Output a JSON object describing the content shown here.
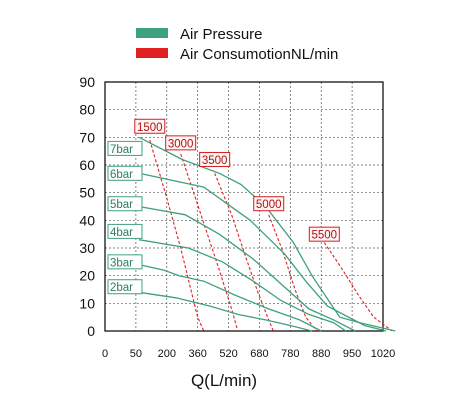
{
  "chart_data": {
    "type": "line",
    "xlabel": "Q(L/min)",
    "ylabel": "",
    "x_ticks": [
      "0",
      "50",
      "200",
      "360",
      "520",
      "680",
      "780",
      "880",
      "950",
      "1020"
    ],
    "y_ticks": [
      "0",
      "10",
      "20",
      "30",
      "40",
      "50",
      "60",
      "70",
      "80",
      "90"
    ],
    "ylim": [
      0,
      90
    ],
    "grid": true,
    "legend_position": "top",
    "legend": [
      {
        "label": "Air Pressure",
        "color": "#3fa07e"
      },
      {
        "label": "Air ConsumotionNL/min",
        "color": "#e02020"
      }
    ],
    "pressure_series": [
      {
        "name": "7bar",
        "color": "#3fa07e",
        "points": [
          [
            1.1,
            70
          ],
          [
            2.5,
            62
          ],
          [
            3.7,
            57
          ],
          [
            4.4,
            53
          ],
          [
            5.2,
            45
          ],
          [
            6.1,
            32
          ],
          [
            6.7,
            20
          ],
          [
            7.6,
            5
          ],
          [
            8.25,
            3
          ],
          [
            9.4,
            0
          ]
        ]
      },
      {
        "name": "6bar",
        "color": "#3fa07e",
        "points": [
          [
            1.1,
            57
          ],
          [
            3.2,
            52
          ],
          [
            4.7,
            40
          ],
          [
            5.8,
            28
          ],
          [
            6.5,
            18
          ],
          [
            7.2,
            9
          ],
          [
            8.4,
            2
          ],
          [
            9.1,
            0
          ]
        ]
      },
      {
        "name": "5bar",
        "color": "#3fa07e",
        "points": [
          [
            1.1,
            45
          ],
          [
            2.6,
            42
          ],
          [
            3.7,
            35
          ],
          [
            4.8,
            26
          ],
          [
            5.7,
            17
          ],
          [
            6.6,
            8
          ],
          [
            7.4,
            4
          ],
          [
            8.1,
            0
          ]
        ]
      },
      {
        "name": "4bar",
        "color": "#3fa07e",
        "points": [
          [
            1.1,
            33
          ],
          [
            2.7,
            30
          ],
          [
            3.8,
            25
          ],
          [
            4.8,
            18
          ],
          [
            5.7,
            11
          ],
          [
            6.6,
            6
          ],
          [
            7.4,
            3
          ],
          [
            7.8,
            0
          ]
        ]
      },
      {
        "name": "3bar",
        "color": "#3fa07e",
        "points": [
          [
            1.1,
            24
          ],
          [
            1.9,
            22
          ],
          [
            2.4,
            20
          ],
          [
            3.2,
            18
          ],
          [
            4.2,
            13
          ],
          [
            5.3,
            8
          ],
          [
            6.3,
            4
          ],
          [
            7.0,
            0
          ]
        ]
      },
      {
        "name": "2bar",
        "color": "#3fa07e",
        "points": [
          [
            1.1,
            14
          ],
          [
            2.3,
            12
          ],
          [
            3.4,
            9
          ],
          [
            4.3,
            6
          ],
          [
            5.2,
            4
          ],
          [
            6.0,
            2
          ],
          [
            6.7,
            0
          ]
        ]
      }
    ],
    "consumption_series": [
      {
        "name": "1500",
        "color": "#e02020",
        "points": [
          [
            1.45,
            69
          ],
          [
            2.0,
            48
          ],
          [
            2.45,
            30
          ],
          [
            2.8,
            14
          ],
          [
            3.0,
            5
          ],
          [
            3.2,
            0
          ]
        ]
      },
      {
        "name": "3000",
        "color": "#e02020",
        "points": [
          [
            2.45,
            64
          ],
          [
            3.05,
            44
          ],
          [
            3.7,
            22
          ],
          [
            4.1,
            8
          ],
          [
            4.3,
            0
          ]
        ]
      },
      {
        "name": "3500",
        "color": "#e02020",
        "points": [
          [
            3.55,
            57
          ],
          [
            4.1,
            42
          ],
          [
            4.55,
            27
          ],
          [
            4.95,
            14
          ],
          [
            5.3,
            4
          ],
          [
            5.45,
            0
          ]
        ]
      },
      {
        "name": "5000",
        "color": "#e02020",
        "points": [
          [
            5.3,
            42
          ],
          [
            5.75,
            29
          ],
          [
            6.15,
            15
          ],
          [
            6.5,
            5
          ],
          [
            6.85,
            0
          ]
        ]
      },
      {
        "name": "5500",
        "color": "#e02020",
        "points": [
          [
            7.1,
            32
          ],
          [
            7.7,
            22
          ],
          [
            8.2,
            13
          ],
          [
            8.7,
            5
          ],
          [
            9.3,
            0
          ]
        ]
      }
    ],
    "consumption_labels": [
      {
        "text": "1500",
        "x": 1.45,
        "y": 74
      },
      {
        "text": "3000",
        "x": 2.45,
        "y": 68
      },
      {
        "text": "3500",
        "x": 3.55,
        "y": 62
      },
      {
        "text": "5000",
        "x": 5.3,
        "y": 46
      },
      {
        "text": "5500",
        "x": 7.1,
        "y": 35
      }
    ],
    "pressure_labels": [
      {
        "text": "7bar",
        "y": 66
      },
      {
        "text": "6bar",
        "y": 57
      },
      {
        "text": "5bar",
        "y": 46
      },
      {
        "text": "4bar",
        "y": 36
      },
      {
        "text": "3bar",
        "y": 25
      },
      {
        "text": "2bar",
        "y": 16
      }
    ]
  }
}
